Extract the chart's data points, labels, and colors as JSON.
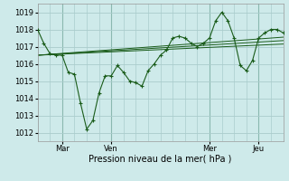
{
  "xlabel": "Pression niveau de la mer( hPa )",
  "bg_color": "#ceeaea",
  "grid_color": "#aacccc",
  "line_color": "#1a5c1a",
  "vline_color": "#8ab8b0",
  "ylim": [
    1011.5,
    1019.5
  ],
  "yticks": [
    1012,
    1013,
    1014,
    1015,
    1016,
    1017,
    1018,
    1019
  ],
  "xlim": [
    0,
    120
  ],
  "x_tick_positions": [
    12,
    36,
    84,
    108
  ],
  "x_tick_labels": [
    "Mar",
    "Ven",
    "Mer",
    "Jeu"
  ],
  "main_line_x": [
    0,
    3,
    6,
    9,
    12,
    15,
    18,
    21,
    24,
    27,
    30,
    33,
    36,
    39,
    42,
    45,
    48,
    51,
    54,
    57,
    60,
    63,
    66,
    69,
    72,
    75,
    78,
    81,
    84,
    87,
    90,
    93,
    96,
    99,
    102,
    105,
    108,
    111,
    114,
    117,
    120
  ],
  "main_line_y": [
    1018.0,
    1017.2,
    1016.6,
    1016.5,
    1016.5,
    1015.5,
    1015.4,
    1013.7,
    1012.2,
    1012.7,
    1014.3,
    1015.3,
    1015.3,
    1015.9,
    1015.5,
    1015.0,
    1014.9,
    1014.7,
    1015.6,
    1016.0,
    1016.5,
    1016.8,
    1017.5,
    1017.6,
    1017.5,
    1017.2,
    1017.0,
    1017.2,
    1017.5,
    1018.5,
    1019.0,
    1018.5,
    1017.5,
    1015.9,
    1015.6,
    1016.2,
    1017.5,
    1017.8,
    1018.0,
    1018.0,
    1017.8
  ],
  "smooth_lines": [
    {
      "x": [
        0,
        120
      ],
      "y": [
        1016.5,
        1017.55
      ]
    },
    {
      "x": [
        0,
        120
      ],
      "y": [
        1016.5,
        1017.35
      ]
    },
    {
      "x": [
        0,
        120
      ],
      "y": [
        1016.5,
        1017.15
      ]
    }
  ],
  "xlabel_fontsize": 7,
  "tick_fontsize": 6
}
